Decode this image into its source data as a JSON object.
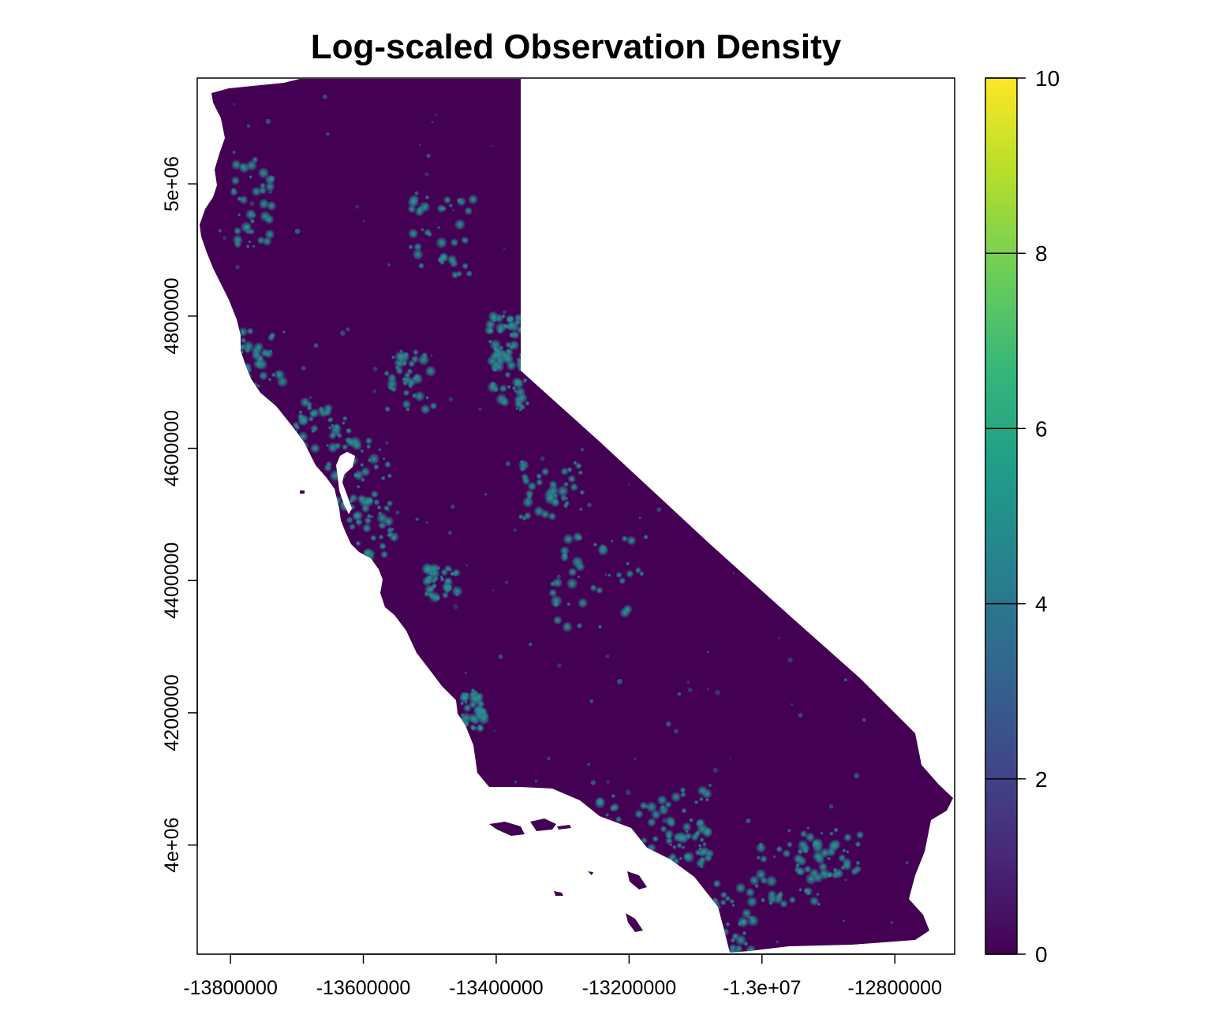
{
  "chart_data": {
    "type": "heatmap",
    "title": "Log-scaled Observation Density",
    "xlabel": "",
    "ylabel": "",
    "x_ticks": [
      -13800000,
      -13600000,
      -13400000,
      -13200000,
      -13000000,
      -12800000
    ],
    "x_tick_labels": [
      "-13800000",
      "-13600000",
      "-13400000",
      "-13200000",
      "-1.3e+07",
      "-12800000"
    ],
    "y_ticks": [
      4000000,
      4200000,
      4400000,
      4600000,
      4800000,
      5000000
    ],
    "y_tick_labels": [
      "4e+06",
      "4200000",
      "4400000",
      "4600000",
      "4800000",
      "5e+06"
    ],
    "xlim": [
      -13850000,
      -12710000
    ],
    "ylim": [
      3835000,
      5160000
    ],
    "legend": {
      "placement": "right",
      "ticks": [
        0,
        2,
        4,
        6,
        8,
        10
      ],
      "tick_labels": [
        "0",
        "2",
        "4",
        "6",
        "8",
        "10"
      ],
      "range": [
        0,
        10
      ],
      "colors": [
        "#440154",
        "#482878",
        "#3E4A89",
        "#31688E",
        "#26828E",
        "#1F9E89",
        "#35B779",
        "#6DCD59",
        "#B4DE2C",
        "#FDE725"
      ]
    },
    "region_color": "#440154",
    "hotspot_color": "#21908C"
  }
}
